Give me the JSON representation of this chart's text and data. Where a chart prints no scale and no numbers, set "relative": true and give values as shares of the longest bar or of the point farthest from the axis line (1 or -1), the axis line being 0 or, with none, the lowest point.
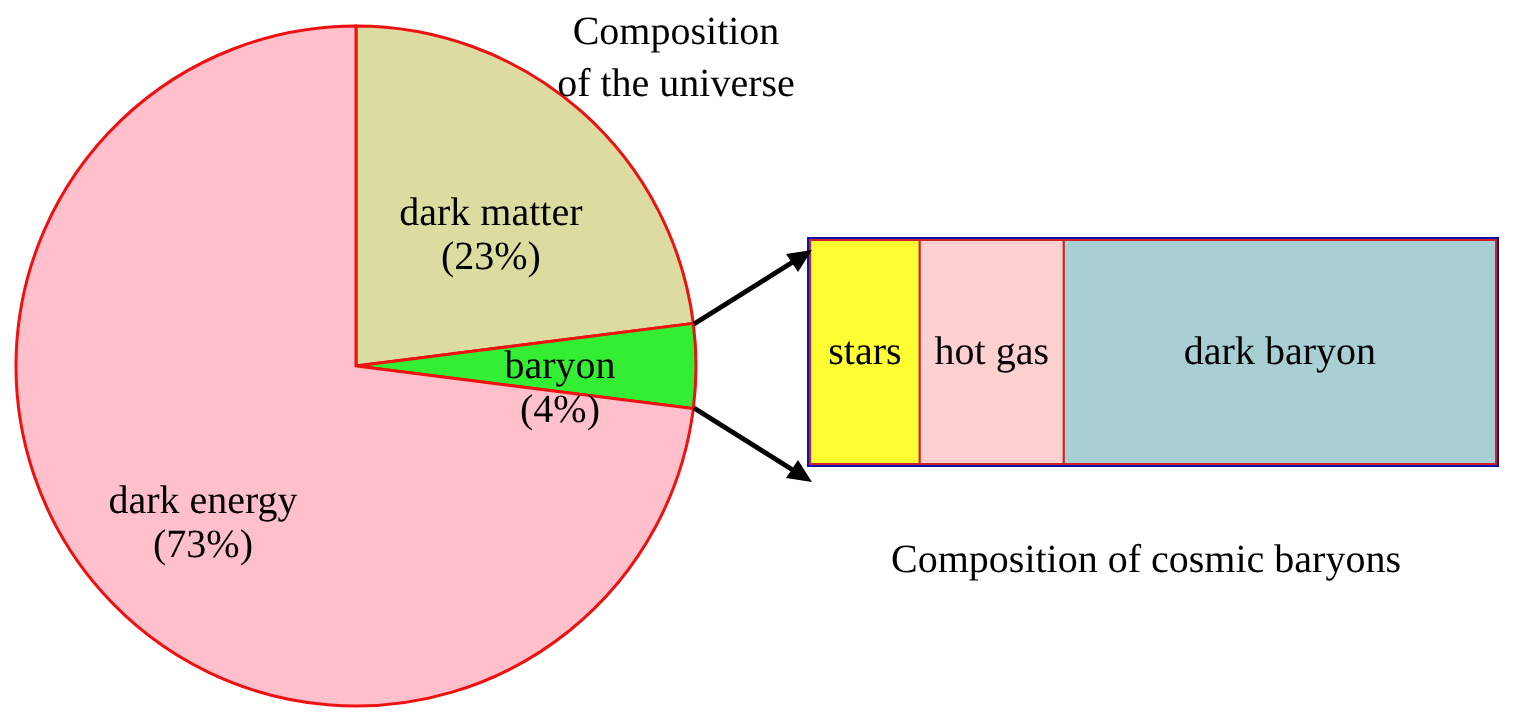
{
  "chart_data": [
    {
      "type": "pie",
      "title": "Composition\nof the universe",
      "categories": [
        "dark matter",
        "baryon",
        "dark energy"
      ],
      "values": [
        23,
        4,
        73
      ],
      "value_labels": [
        "(23%)",
        "(4%)",
        "(73%)"
      ],
      "colors": [
        "#dcdca0",
        "#33ee33",
        "#ffc0cb"
      ]
    },
    {
      "type": "bar",
      "title": "Composition of cosmic baryons",
      "orientation": "horizontal",
      "stacked": true,
      "relative": true,
      "categories": [
        null
      ],
      "series": [
        {
          "name": "stars",
          "color": "#ffff33",
          "values": [
            0.16
          ]
        },
        {
          "name": "hot gas",
          "color": "#ffd0d0",
          "values": [
            0.21
          ]
        },
        {
          "name": "dark baryon",
          "color": "#a8d0d4",
          "values": [
            0.63
          ]
        }
      ]
    }
  ]
}
